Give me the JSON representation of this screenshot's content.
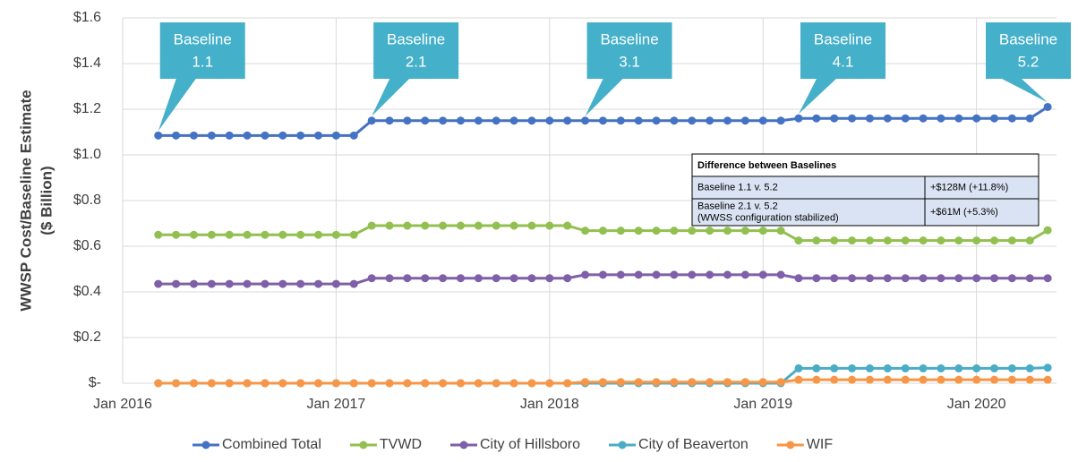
{
  "chart_data": {
    "type": "line",
    "y_label": [
      "WWSP Cost/Baseline Estimate",
      "($ Billion)"
    ],
    "x": [
      "2016-03",
      "2016-04",
      "2016-05",
      "2016-06",
      "2016-07",
      "2016-08",
      "2016-09",
      "2016-10",
      "2016-11",
      "2016-12",
      "2017-01",
      "2017-02",
      "2017-03",
      "2017-04",
      "2017-05",
      "2017-06",
      "2017-07",
      "2017-08",
      "2017-09",
      "2017-10",
      "2017-11",
      "2017-12",
      "2018-01",
      "2018-02",
      "2018-03",
      "2018-04",
      "2018-05",
      "2018-06",
      "2018-07",
      "2018-08",
      "2018-09",
      "2018-10",
      "2018-11",
      "2018-12",
      "2019-01",
      "2019-02",
      "2019-03",
      "2019-04",
      "2019-05",
      "2019-06",
      "2019-07",
      "2019-08",
      "2019-09",
      "2019-10",
      "2019-11",
      "2019-12",
      "2020-01",
      "2020-02",
      "2020-03",
      "2020-04",
      "2020-05"
    ],
    "xlim": [
      "2016-01",
      "2020-06"
    ],
    "xticks": [
      {
        "value": "2016-01",
        "label": "Jan 2016"
      },
      {
        "value": "2017-01",
        "label": "Jan 2017"
      },
      {
        "value": "2018-01",
        "label": "Jan 2018"
      },
      {
        "value": "2019-01",
        "label": "Jan 2019"
      },
      {
        "value": "2020-01",
        "label": "Jan 2020"
      }
    ],
    "ylim": [
      0,
      1.6
    ],
    "yticks": [
      {
        "value": 0,
        "label": "$-"
      },
      {
        "value": 0.2,
        "label": "$0.2"
      },
      {
        "value": 0.4,
        "label": "$0.4"
      },
      {
        "value": 0.6,
        "label": "$0.6"
      },
      {
        "value": 0.8,
        "label": "$0.8"
      },
      {
        "value": 1.0,
        "label": "$1.0"
      },
      {
        "value": 1.2,
        "label": "$1.2"
      },
      {
        "value": 1.4,
        "label": "$1.4"
      },
      {
        "value": 1.6,
        "label": "$1.6"
      }
    ],
    "grid": true,
    "legend": "bottom",
    "series": [
      {
        "name": "Combined Total",
        "color": "#4472c4",
        "values": [
          1.085,
          1.085,
          1.085,
          1.085,
          1.085,
          1.085,
          1.085,
          1.085,
          1.085,
          1.085,
          1.085,
          1.085,
          1.15,
          1.15,
          1.15,
          1.15,
          1.15,
          1.15,
          1.15,
          1.15,
          1.15,
          1.15,
          1.15,
          1.15,
          1.15,
          1.15,
          1.15,
          1.15,
          1.15,
          1.15,
          1.15,
          1.15,
          1.15,
          1.15,
          1.15,
          1.15,
          1.16,
          1.16,
          1.16,
          1.16,
          1.16,
          1.16,
          1.16,
          1.16,
          1.16,
          1.16,
          1.16,
          1.16,
          1.16,
          1.16,
          1.21
        ]
      },
      {
        "name": "TVWD",
        "color": "#92c050",
        "values": [
          0.65,
          0.65,
          0.65,
          0.65,
          0.65,
          0.65,
          0.65,
          0.65,
          0.65,
          0.65,
          0.65,
          0.65,
          0.69,
          0.69,
          0.69,
          0.69,
          0.69,
          0.69,
          0.69,
          0.69,
          0.69,
          0.69,
          0.69,
          0.69,
          0.668,
          0.668,
          0.668,
          0.668,
          0.668,
          0.668,
          0.668,
          0.668,
          0.668,
          0.668,
          0.668,
          0.668,
          0.625,
          0.625,
          0.625,
          0.625,
          0.625,
          0.625,
          0.625,
          0.625,
          0.625,
          0.625,
          0.625,
          0.625,
          0.625,
          0.625,
          0.67
        ]
      },
      {
        "name": "City of Hillsboro",
        "color": "#7f5fa8",
        "values": [
          0.435,
          0.435,
          0.435,
          0.435,
          0.435,
          0.435,
          0.435,
          0.435,
          0.435,
          0.435,
          0.435,
          0.435,
          0.46,
          0.46,
          0.46,
          0.46,
          0.46,
          0.46,
          0.46,
          0.46,
          0.46,
          0.46,
          0.46,
          0.46,
          0.475,
          0.475,
          0.475,
          0.475,
          0.475,
          0.475,
          0.475,
          0.475,
          0.475,
          0.475,
          0.475,
          0.475,
          0.46,
          0.46,
          0.46,
          0.46,
          0.46,
          0.46,
          0.46,
          0.46,
          0.46,
          0.46,
          0.46,
          0.46,
          0.46,
          0.46,
          0.46
        ]
      },
      {
        "name": "City of Beaverton",
        "color": "#4bacc6",
        "values": [
          0,
          0,
          0,
          0,
          0,
          0,
          0,
          0,
          0,
          0,
          0,
          0,
          0,
          0,
          0,
          0,
          0,
          0,
          0,
          0,
          0,
          0,
          0,
          0,
          0,
          0,
          0,
          0,
          0,
          0,
          0,
          0,
          0,
          0,
          0,
          0,
          0.065,
          0.065,
          0.065,
          0.065,
          0.065,
          0.065,
          0.065,
          0.065,
          0.065,
          0.065,
          0.065,
          0.065,
          0.065,
          0.065,
          0.068
        ]
      },
      {
        "name": "WIF",
        "color": "#f79646",
        "values": [
          0,
          0,
          0,
          0,
          0,
          0,
          0,
          0,
          0,
          0,
          0,
          0,
          0,
          0,
          0,
          0,
          0,
          0,
          0,
          0,
          0,
          0,
          0,
          0,
          0.005,
          0.005,
          0.005,
          0.005,
          0.005,
          0.005,
          0.005,
          0.005,
          0.005,
          0.005,
          0.005,
          0.005,
          0.015,
          0.015,
          0.015,
          0.015,
          0.015,
          0.015,
          0.015,
          0.015,
          0.015,
          0.015,
          0.015,
          0.015,
          0.015,
          0.015,
          0.015
        ]
      }
    ],
    "annotations": [
      {
        "text": [
          "Baseline",
          "1.1"
        ],
        "x": "2016-03"
      },
      {
        "text": [
          "Baseline",
          "2.1"
        ],
        "x": "2017-03"
      },
      {
        "text": [
          "Baseline",
          "3.1"
        ],
        "x": "2018-03"
      },
      {
        "text": [
          "Baseline",
          "4.1"
        ],
        "x": "2019-03"
      },
      {
        "text": [
          "Baseline",
          "5.2"
        ],
        "x": "2020-05"
      }
    ],
    "table": {
      "header": "Difference between Baselines",
      "rows": [
        [
          [
            "Baseline 1.1 v. 5.2"
          ],
          [
            "+$128M (+11.8%)"
          ]
        ],
        [
          [
            "Baseline 2.1 v. 5.2",
            "(WWSS configuration stabilized)"
          ],
          [
            "+$61M (+5.3%)"
          ]
        ]
      ]
    }
  }
}
